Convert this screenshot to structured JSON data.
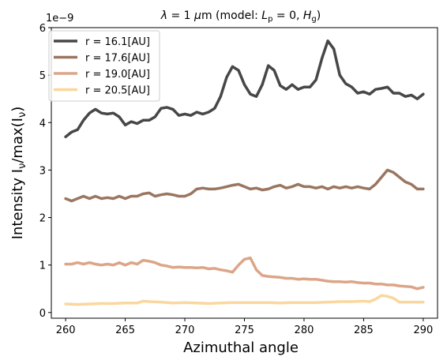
{
  "chart_data": {
    "type": "line",
    "title": "λ = 1 μm (model: L_p = 0, H_g)",
    "title_parts": {
      "lambda": "λ",
      "eq1": " = 1 ",
      "mu": "μ",
      "m": "m (model: ",
      "L": "L",
      "p": "p",
      "eq2": " = 0, ",
      "H": "H",
      "g": "g",
      "close": ")"
    },
    "xlabel": "Azimuthal angle",
    "ylabel": "Intensity I",
    "ylabel_parts": {
      "a": "Intensity I",
      "nu1": "ν",
      "b": "/max(I",
      "nu2": "ν",
      "c": ")"
    },
    "offset_text": "1e−9",
    "xlim": [
      258.8,
      291.2
    ],
    "ylim": [
      -0.12,
      6.0
    ],
    "xticks": [
      260,
      265,
      270,
      275,
      280,
      285,
      290
    ],
    "yticks": [
      0,
      1,
      2,
      3,
      4,
      5,
      6
    ],
    "grid": false,
    "legend_position": "top-left",
    "series": [
      {
        "name": "r = 16.1[AU]",
        "color": "#474747",
        "points": [
          [
            260,
            3.7
          ],
          [
            260.5,
            3.8
          ],
          [
            261,
            3.85
          ],
          [
            261.5,
            4.05
          ],
          [
            262,
            4.2
          ],
          [
            262.5,
            4.28
          ],
          [
            263,
            4.2
          ],
          [
            263.5,
            4.18
          ],
          [
            264,
            4.2
          ],
          [
            264.5,
            4.12
          ],
          [
            265,
            3.95
          ],
          [
            265.5,
            4.02
          ],
          [
            266,
            3.98
          ],
          [
            266.5,
            4.05
          ],
          [
            267,
            4.05
          ],
          [
            267.5,
            4.12
          ],
          [
            268,
            4.3
          ],
          [
            268.5,
            4.32
          ],
          [
            269,
            4.28
          ],
          [
            269.5,
            4.15
          ],
          [
            270,
            4.18
          ],
          [
            270.5,
            4.15
          ],
          [
            271,
            4.22
          ],
          [
            271.5,
            4.18
          ],
          [
            272,
            4.22
          ],
          [
            272.5,
            4.3
          ],
          [
            273,
            4.55
          ],
          [
            273.5,
            4.95
          ],
          [
            274,
            5.18
          ],
          [
            274.5,
            5.1
          ],
          [
            275,
            4.8
          ],
          [
            275.5,
            4.6
          ],
          [
            276,
            4.55
          ],
          [
            276.5,
            4.8
          ],
          [
            277,
            5.2
          ],
          [
            277.5,
            5.1
          ],
          [
            278,
            4.78
          ],
          [
            278.5,
            4.7
          ],
          [
            279,
            4.8
          ],
          [
            279.5,
            4.7
          ],
          [
            280,
            4.75
          ],
          [
            280.5,
            4.75
          ],
          [
            281,
            4.9
          ],
          [
            281.5,
            5.35
          ],
          [
            282,
            5.72
          ],
          [
            282.5,
            5.55
          ],
          [
            283,
            5.0
          ],
          [
            283.5,
            4.82
          ],
          [
            284,
            4.75
          ],
          [
            284.5,
            4.62
          ],
          [
            285,
            4.65
          ],
          [
            285.5,
            4.6
          ],
          [
            286,
            4.7
          ],
          [
            286.5,
            4.72
          ],
          [
            287,
            4.75
          ],
          [
            287.5,
            4.62
          ],
          [
            288,
            4.62
          ],
          [
            288.5,
            4.55
          ],
          [
            289,
            4.58
          ],
          [
            289.5,
            4.5
          ],
          [
            290,
            4.6
          ]
        ]
      },
      {
        "name": "r = 17.6[AU]",
        "color": "#9a7660",
        "points": [
          [
            260,
            2.4
          ],
          [
            260.5,
            2.35
          ],
          [
            261,
            2.4
          ],
          [
            261.5,
            2.45
          ],
          [
            262,
            2.4
          ],
          [
            262.5,
            2.45
          ],
          [
            263,
            2.4
          ],
          [
            263.5,
            2.42
          ],
          [
            264,
            2.4
          ],
          [
            264.5,
            2.45
          ],
          [
            265,
            2.4
          ],
          [
            265.5,
            2.45
          ],
          [
            266,
            2.45
          ],
          [
            266.5,
            2.5
          ],
          [
            267,
            2.52
          ],
          [
            267.5,
            2.45
          ],
          [
            268,
            2.48
          ],
          [
            268.5,
            2.5
          ],
          [
            269,
            2.48
          ],
          [
            269.5,
            2.45
          ],
          [
            270,
            2.45
          ],
          [
            270.5,
            2.5
          ],
          [
            271,
            2.6
          ],
          [
            271.5,
            2.62
          ],
          [
            272,
            2.6
          ],
          [
            272.5,
            2.6
          ],
          [
            273,
            2.62
          ],
          [
            273.5,
            2.65
          ],
          [
            274,
            2.68
          ],
          [
            274.5,
            2.7
          ],
          [
            275,
            2.65
          ],
          [
            275.5,
            2.6
          ],
          [
            276,
            2.62
          ],
          [
            276.5,
            2.58
          ],
          [
            277,
            2.6
          ],
          [
            277.5,
            2.65
          ],
          [
            278,
            2.68
          ],
          [
            278.5,
            2.62
          ],
          [
            279,
            2.65
          ],
          [
            279.5,
            2.7
          ],
          [
            280,
            2.65
          ],
          [
            280.5,
            2.65
          ],
          [
            281,
            2.62
          ],
          [
            281.5,
            2.65
          ],
          [
            282,
            2.6
          ],
          [
            282.5,
            2.65
          ],
          [
            283,
            2.62
          ],
          [
            283.5,
            2.65
          ],
          [
            284,
            2.62
          ],
          [
            284.5,
            2.65
          ],
          [
            285,
            2.62
          ],
          [
            285.5,
            2.6
          ],
          [
            286,
            2.7
          ],
          [
            286.5,
            2.85
          ],
          [
            287,
            3.0
          ],
          [
            287.5,
            2.95
          ],
          [
            288,
            2.85
          ],
          [
            288.5,
            2.75
          ],
          [
            289,
            2.7
          ],
          [
            289.5,
            2.6
          ],
          [
            290,
            2.6
          ]
        ]
      },
      {
        "name": "r = 19.0[AU]",
        "color": "#dca587",
        "points": [
          [
            260,
            1.02
          ],
          [
            260.5,
            1.02
          ],
          [
            261,
            1.05
          ],
          [
            261.5,
            1.02
          ],
          [
            262,
            1.05
          ],
          [
            262.5,
            1.02
          ],
          [
            263,
            1.0
          ],
          [
            263.5,
            1.02
          ],
          [
            264,
            1.0
          ],
          [
            264.5,
            1.05
          ],
          [
            265,
            1.0
          ],
          [
            265.5,
            1.05
          ],
          [
            266,
            1.02
          ],
          [
            266.5,
            1.1
          ],
          [
            267,
            1.08
          ],
          [
            267.5,
            1.05
          ],
          [
            268,
            1.0
          ],
          [
            268.5,
            0.98
          ],
          [
            269,
            0.95
          ],
          [
            269.5,
            0.96
          ],
          [
            270,
            0.95
          ],
          [
            270.5,
            0.95
          ],
          [
            271,
            0.94
          ],
          [
            271.5,
            0.95
          ],
          [
            272,
            0.92
          ],
          [
            272.5,
            0.93
          ],
          [
            273,
            0.9
          ],
          [
            273.5,
            0.88
          ],
          [
            274,
            0.85
          ],
          [
            274.5,
            1.0
          ],
          [
            275,
            1.12
          ],
          [
            275.5,
            1.15
          ],
          [
            276,
            0.9
          ],
          [
            276.5,
            0.78
          ],
          [
            277,
            0.76
          ],
          [
            277.5,
            0.75
          ],
          [
            278,
            0.74
          ],
          [
            278.5,
            0.72
          ],
          [
            279,
            0.72
          ],
          [
            279.5,
            0.7
          ],
          [
            280,
            0.71
          ],
          [
            280.5,
            0.7
          ],
          [
            281,
            0.7
          ],
          [
            281.5,
            0.68
          ],
          [
            282,
            0.66
          ],
          [
            282.5,
            0.65
          ],
          [
            283,
            0.65
          ],
          [
            283.5,
            0.64
          ],
          [
            284,
            0.65
          ],
          [
            284.5,
            0.63
          ],
          [
            285,
            0.62
          ],
          [
            285.5,
            0.62
          ],
          [
            286,
            0.6
          ],
          [
            286.5,
            0.6
          ],
          [
            287,
            0.58
          ],
          [
            287.5,
            0.58
          ],
          [
            288,
            0.56
          ],
          [
            288.5,
            0.55
          ],
          [
            289,
            0.54
          ],
          [
            289.5,
            0.5
          ],
          [
            290,
            0.53
          ]
        ]
      },
      {
        "name": "r = 20.5[AU]",
        "color": "#fad79e",
        "points": [
          [
            260,
            0.18
          ],
          [
            261,
            0.17
          ],
          [
            262,
            0.18
          ],
          [
            263,
            0.19
          ],
          [
            264,
            0.19
          ],
          [
            265,
            0.2
          ],
          [
            266,
            0.2
          ],
          [
            266.5,
            0.24
          ],
          [
            267,
            0.23
          ],
          [
            268,
            0.22
          ],
          [
            269,
            0.2
          ],
          [
            270,
            0.21
          ],
          [
            271,
            0.2
          ],
          [
            272,
            0.19
          ],
          [
            273,
            0.2
          ],
          [
            274,
            0.21
          ],
          [
            275,
            0.21
          ],
          [
            276,
            0.21
          ],
          [
            277,
            0.21
          ],
          [
            278,
            0.2
          ],
          [
            279,
            0.21
          ],
          [
            280,
            0.21
          ],
          [
            281,
            0.21
          ],
          [
            282,
            0.22
          ],
          [
            283,
            0.23
          ],
          [
            284,
            0.23
          ],
          [
            285,
            0.24
          ],
          [
            285.5,
            0.23
          ],
          [
            286,
            0.28
          ],
          [
            286.5,
            0.36
          ],
          [
            287,
            0.34
          ],
          [
            287.5,
            0.3
          ],
          [
            288,
            0.22
          ],
          [
            289,
            0.22
          ],
          [
            290,
            0.22
          ]
        ]
      }
    ]
  }
}
